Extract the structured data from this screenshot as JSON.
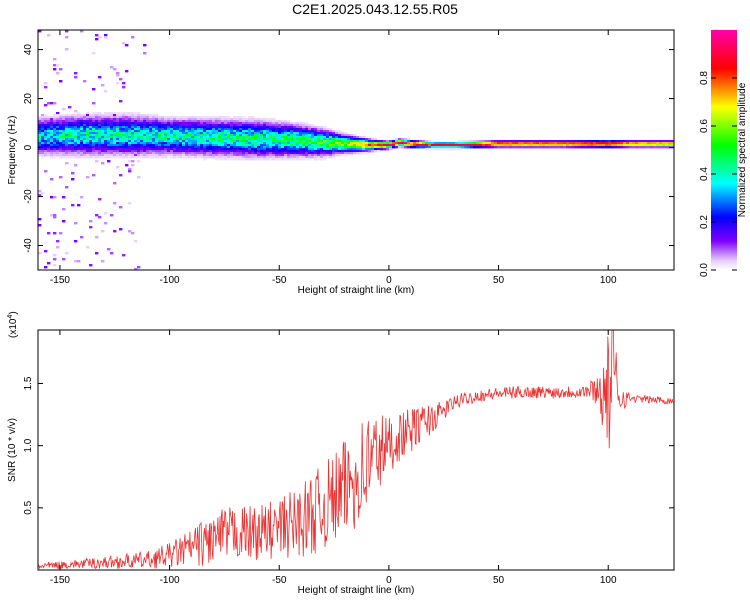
{
  "title": "C2E1.2025.043.12.55.R05",
  "chart_data": [
    {
      "type": "heatmap",
      "xlabel": "Height of straight line (km)",
      "ylabel": "Frequency (Hz)",
      "xlim": [
        -160,
        130
      ],
      "ylim": [
        -50,
        48
      ],
      "xticks": [
        "-150",
        "-100",
        "-50",
        "0",
        "50",
        "100"
      ],
      "yticks": [
        "-40",
        "-20",
        "0",
        "20",
        "40"
      ],
      "colorbar": {
        "label": "Normalized spectral amplitude",
        "range": [
          0,
          1
        ],
        "ticks": [
          "0.0",
          "0.2",
          "0.4",
          "0.6",
          "0.8"
        ]
      },
      "ridge": {
        "x": [
          -160,
          -140,
          -120,
          -100,
          -80,
          -60,
          -45,
          -30,
          -20,
          -10,
          -5,
          0,
          5,
          10,
          20,
          30,
          50,
          80,
          100,
          110,
          130
        ],
        "center_hz": [
          4.5,
          5,
          5,
          4.5,
          4,
          3.5,
          3,
          2,
          1.5,
          1,
          1,
          1,
          2,
          1.5,
          1,
          1,
          1.5,
          1.5,
          1.5,
          1.5,
          1.5
        ],
        "halfwidth_hz": [
          6,
          6.5,
          6.5,
          6,
          6,
          6,
          5.5,
          4.5,
          3,
          2,
          1.5,
          1.2,
          1.2,
          1.2,
          1,
          1,
          1,
          1,
          1.2,
          1,
          1
        ],
        "peak_amplitude": [
          0.35,
          0.4,
          0.4,
          0.4,
          0.42,
          0.45,
          0.45,
          0.5,
          0.6,
          0.8,
          0.9,
          0.95,
          0.9,
          0.92,
          0.85,
          0.9,
          0.95,
          0.95,
          0.95,
          0.9,
          0.85
        ]
      }
    },
    {
      "type": "line",
      "xlabel": "Height of straight line (km)",
      "ylabel": "SNR (10 * v/v)",
      "y_multiplier": "(x10",
      "y_multiplier_exp": "4",
      "multiplier_close": ")",
      "xlim": [
        -160,
        130
      ],
      "ylim": [
        0,
        1.93
      ],
      "xticks": [
        "-150",
        "-100",
        "-50",
        "0",
        "50",
        "100"
      ],
      "yticks": [
        "0.5",
        "1.0",
        "1.5"
      ],
      "series": [
        {
          "color": "#ee3030",
          "x": [
            -160,
            -150,
            -140,
            -130,
            -120,
            -110,
            -100,
            -90,
            -80,
            -70,
            -60,
            -50,
            -40,
            -30,
            -20,
            -15,
            -10,
            -5,
            0,
            5,
            10,
            15,
            20,
            25,
            30,
            40,
            50,
            60,
            70,
            80,
            90,
            95,
            100,
            102,
            105,
            110,
            120,
            130
          ],
          "y": [
            0.03,
            0.04,
            0.05,
            0.06,
            0.07,
            0.08,
            0.12,
            0.18,
            0.25,
            0.3,
            0.3,
            0.33,
            0.4,
            0.5,
            0.65,
            0.75,
            0.85,
            0.95,
            1.0,
            1.08,
            1.12,
            1.18,
            1.22,
            1.28,
            1.35,
            1.4,
            1.42,
            1.43,
            1.43,
            1.43,
            1.44,
            1.45,
            1.4,
            1.6,
            1.4,
            1.38,
            1.37,
            1.36
          ],
          "noise": [
            0.03,
            0.03,
            0.04,
            0.05,
            0.06,
            0.07,
            0.1,
            0.15,
            0.22,
            0.22,
            0.22,
            0.25,
            0.3,
            0.35,
            0.4,
            0.42,
            0.45,
            0.35,
            0.25,
            0.2,
            0.18,
            0.15,
            0.12,
            0.08,
            0.06,
            0.05,
            0.05,
            0.05,
            0.05,
            0.05,
            0.06,
            0.12,
            0.5,
            0.5,
            0.15,
            0.03,
            0.03,
            0.03
          ]
        }
      ]
    }
  ]
}
